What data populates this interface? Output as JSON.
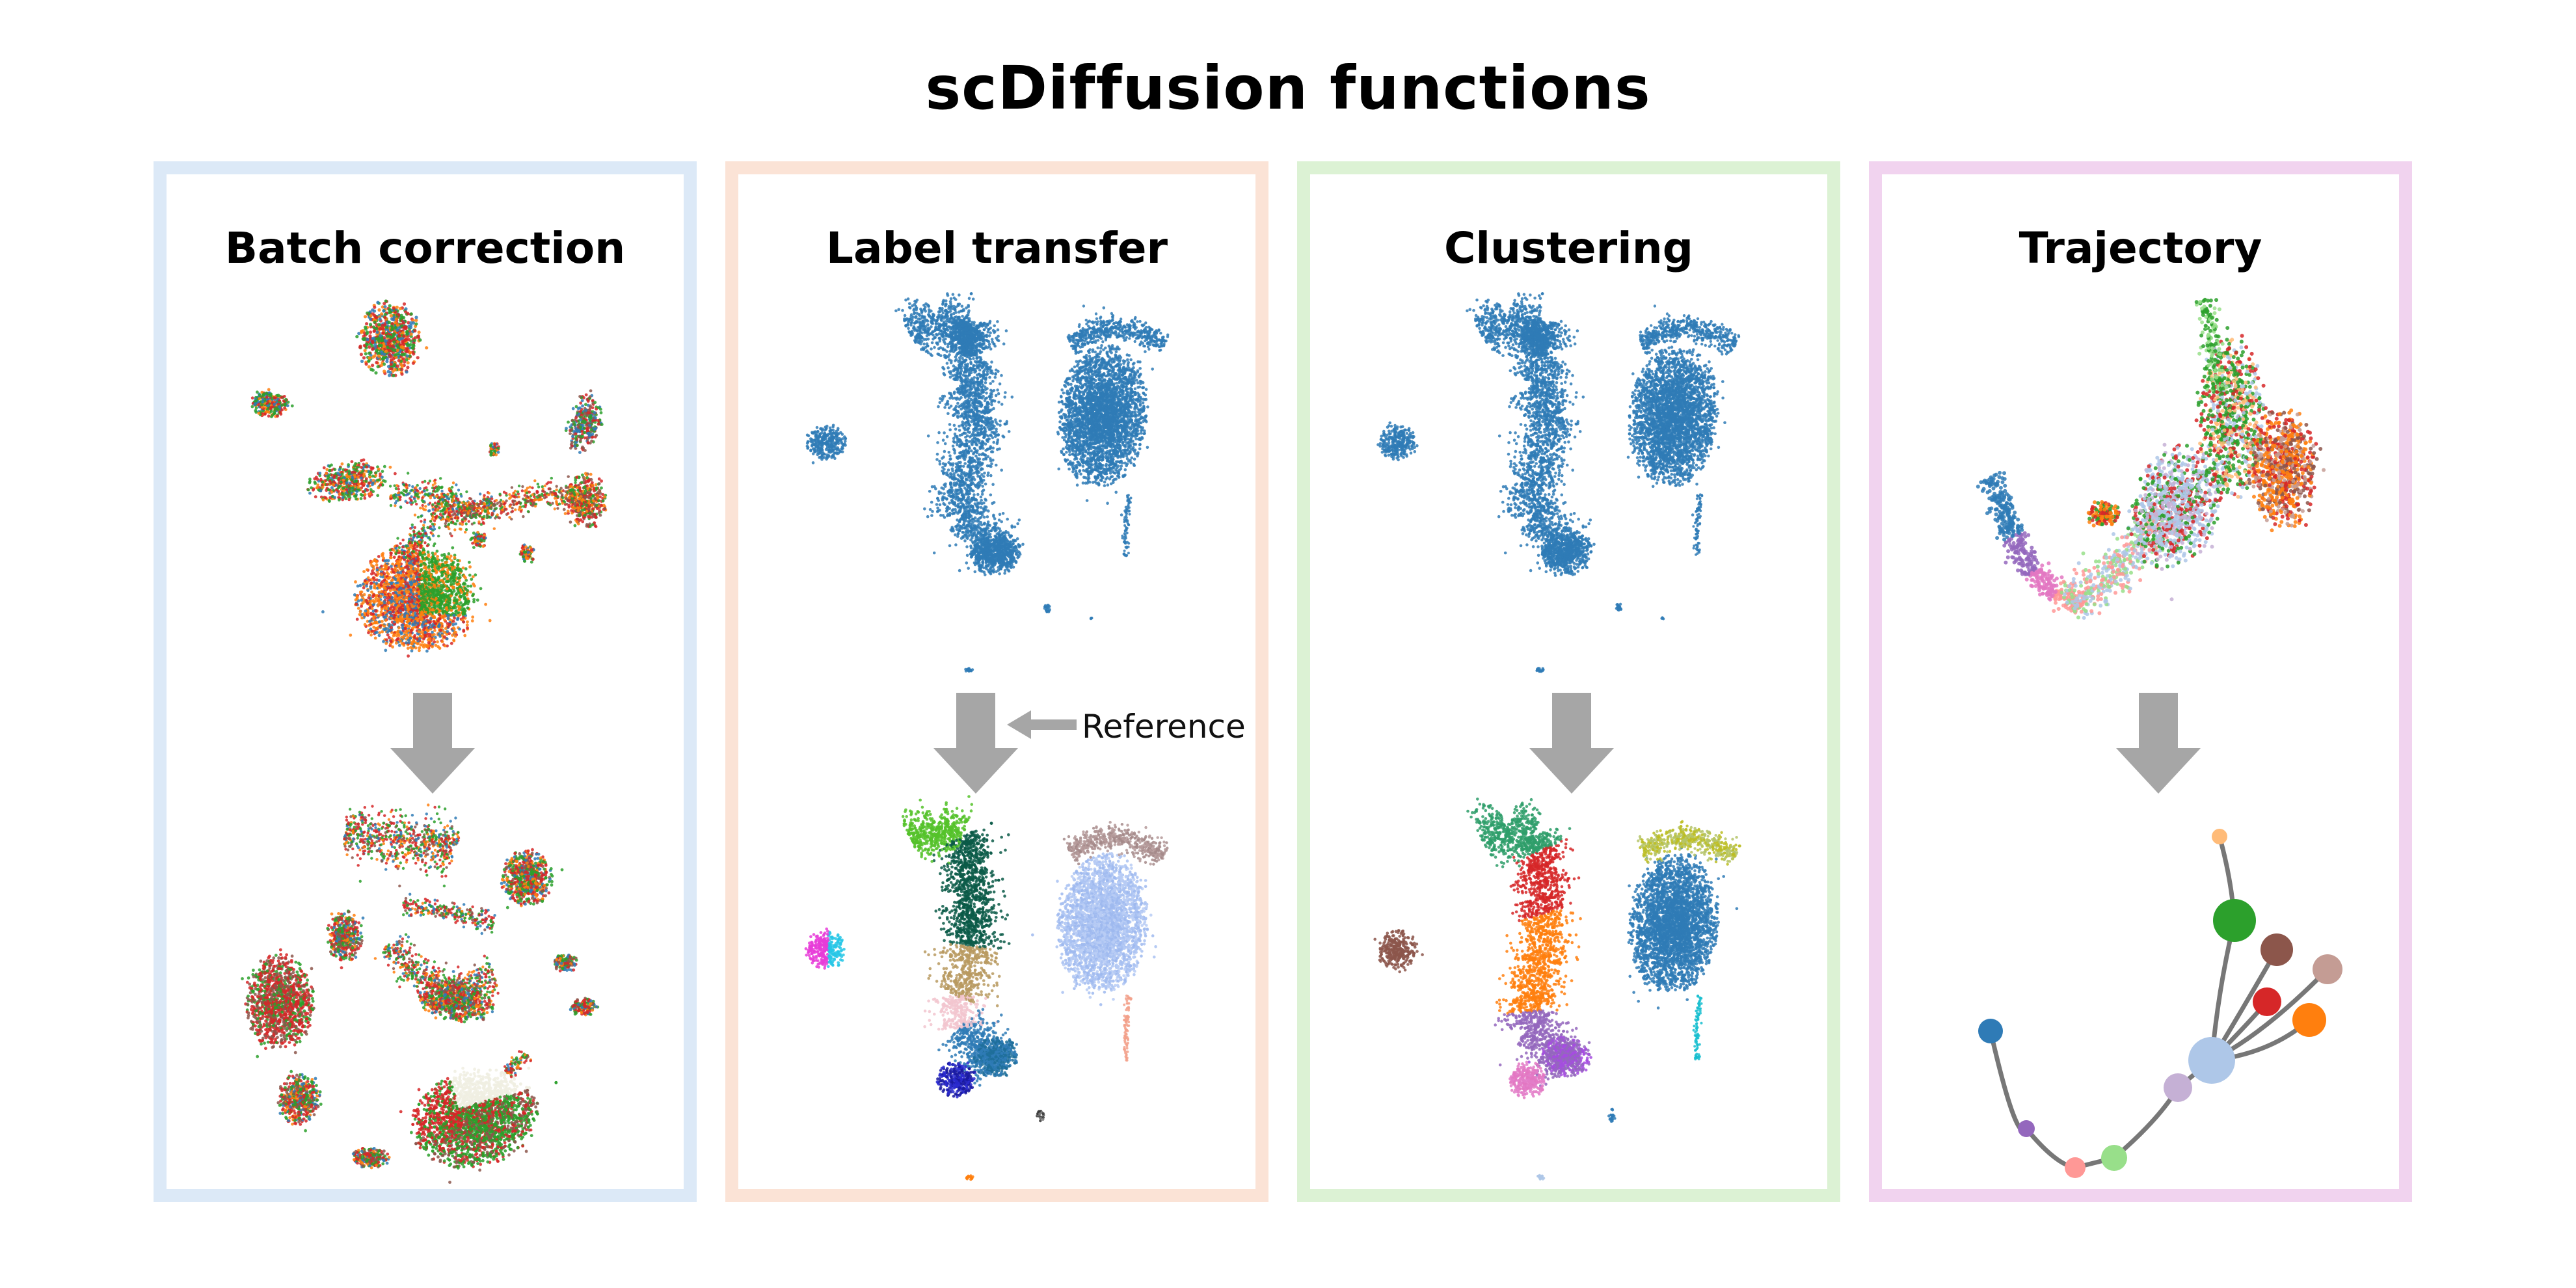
{
  "title": "scDiffusion functions",
  "panels": [
    {
      "id": "batch",
      "title": "Batch correction",
      "border_color": "#dce9f7"
    },
    {
      "id": "label",
      "title": "Label transfer",
      "border_color": "#fbe3d6"
    },
    {
      "id": "cluster",
      "title": "Clustering",
      "border_color": "#dcf2d4"
    },
    {
      "id": "trajectory",
      "title": "Trajectory",
      "border_color": "#f1d3ef"
    }
  ],
  "reference_label": "Reference",
  "colors": {
    "arrow": "#a6a6a6",
    "blue": "#2f7bb6",
    "orange": "#ff7f0e",
    "green": "#2ca02c",
    "red": "#d62728",
    "purple": "#9467bd",
    "brown": "#8c564b",
    "pink": "#e377c2",
    "olive": "#bcbd22",
    "cyan": "#17becf",
    "lightblue": "#aec7e8",
    "lightgreen": "#98df8a",
    "salmon": "#ff9896",
    "lavender": "#c5b0d5",
    "peach": "#ffbb78",
    "rose": "#c49c94",
    "darkgreen": "#0a5a48",
    "navy": "#1a1aa0",
    "lime": "#55c22a",
    "magenta": "#e83cd8",
    "aqua": "#27c7e6",
    "periwinkle": "#a9c2f2",
    "mauve": "#b59a9a",
    "khaki": "#b89a60"
  }
}
